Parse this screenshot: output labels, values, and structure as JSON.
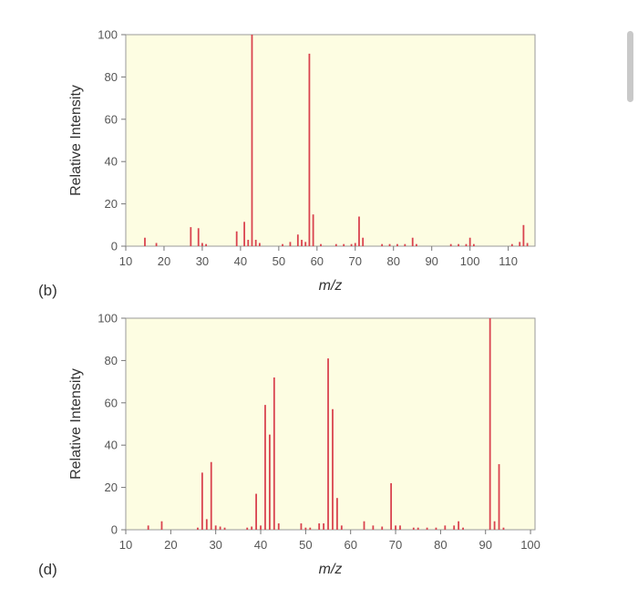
{
  "chart_data": [
    {
      "type": "bar",
      "panel_label": "(b)",
      "xlabel": "m/z",
      "ylabel": "Relative Intensity",
      "xlim": [
        10,
        117
      ],
      "ylim": [
        0,
        100
      ],
      "xticks": [
        10,
        20,
        30,
        40,
        50,
        60,
        70,
        80,
        90,
        100,
        110
      ],
      "yticks": [
        0,
        20,
        40,
        60,
        80,
        100
      ],
      "plot_background": "#fdfde2",
      "bar_color": "#d9434f",
      "grid": false,
      "x": [
        15,
        18,
        27,
        29,
        30,
        31,
        39,
        41,
        42,
        43,
        44,
        45,
        51,
        53,
        55,
        56,
        57,
        58,
        59,
        61,
        65,
        67,
        69,
        70,
        71,
        72,
        77,
        79,
        81,
        83,
        85,
        86,
        95,
        97,
        99,
        100,
        101,
        111,
        113,
        114,
        115
      ],
      "values": [
        4,
        1.5,
        9,
        8.5,
        1.5,
        1,
        7,
        11.5,
        3,
        100,
        3,
        1.5,
        1,
        2,
        5.5,
        3,
        2,
        91,
        15,
        1,
        1,
        1,
        1,
        1.5,
        14,
        4,
        1,
        1,
        1,
        1,
        4,
        1,
        1,
        1,
        1,
        4,
        1,
        1,
        2,
        10,
        1.5
      ]
    },
    {
      "type": "bar",
      "panel_label": "(d)",
      "xlabel": "m/z",
      "ylabel": "Relative Intensity",
      "xlim": [
        10,
        101
      ],
      "ylim": [
        0,
        100
      ],
      "xticks": [
        10,
        20,
        30,
        40,
        50,
        60,
        70,
        80,
        90,
        100
      ],
      "yticks": [
        0,
        20,
        40,
        60,
        80,
        100
      ],
      "plot_background": "#fdfde2",
      "bar_color": "#d9434f",
      "grid": false,
      "x": [
        15,
        18,
        26,
        27,
        28,
        29,
        30,
        31,
        32,
        37,
        38,
        39,
        40,
        41,
        42,
        43,
        44,
        49,
        50,
        51,
        53,
        54,
        55,
        56,
        57,
        58,
        63,
        65,
        67,
        69,
        70,
        71,
        74,
        75,
        77,
        79,
        81,
        83,
        84,
        85,
        91,
        92,
        93,
        94
      ],
      "values": [
        2,
        4,
        1,
        27,
        5,
        32,
        2,
        1.5,
        1,
        1,
        1.5,
        17,
        2,
        59,
        45,
        72,
        3,
        3,
        1,
        1,
        3,
        3,
        81,
        57,
        15,
        2,
        4,
        2,
        1.5,
        22,
        2,
        2,
        1,
        1,
        1,
        1,
        2,
        2,
        4,
        1,
        100,
        4,
        31,
        1
      ]
    }
  ]
}
